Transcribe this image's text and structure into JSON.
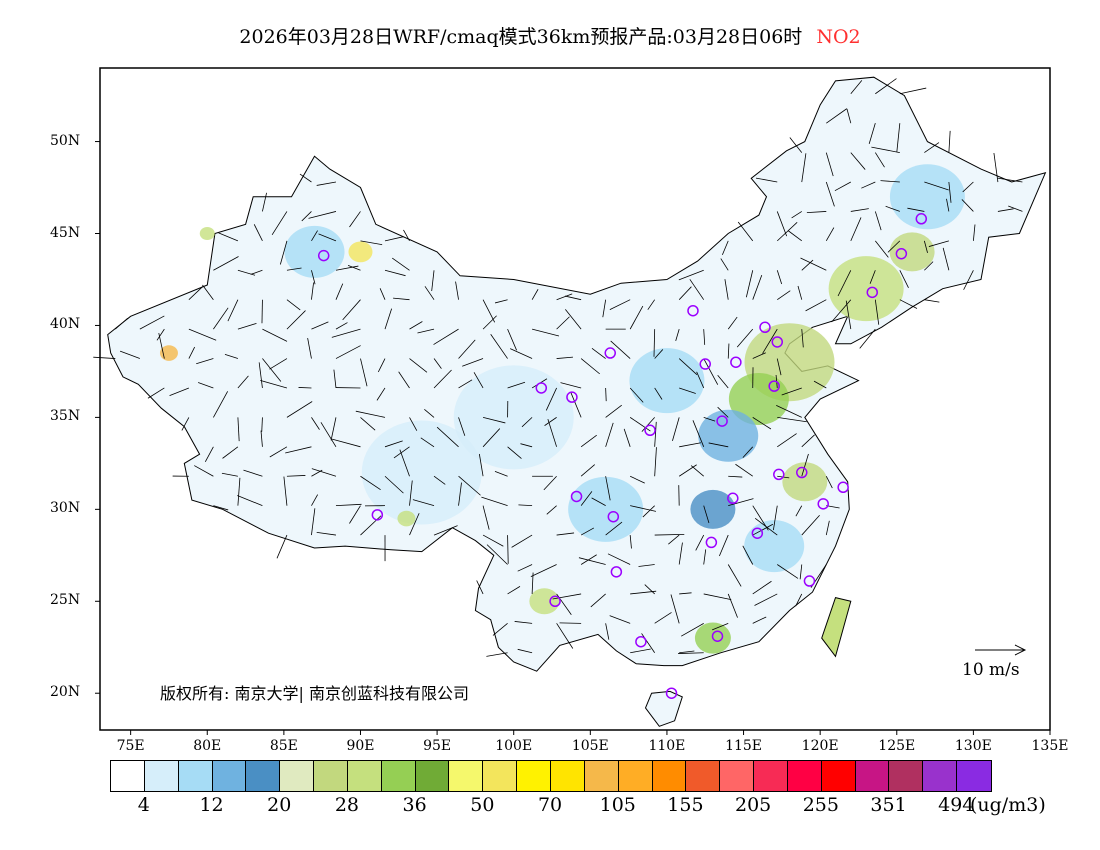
{
  "title": {
    "main": "2026年03月28日WRF/cmaq模式36km预报产品:03月28日06时",
    "species": "NO2"
  },
  "axes": {
    "lat_labels": [
      "50N",
      "45N",
      "40N",
      "35N",
      "30N",
      "25N",
      "20N"
    ],
    "lon_labels": [
      "75E",
      "80E",
      "85E",
      "90E",
      "95E",
      "100E",
      "105E",
      "110E",
      "115E",
      "120E",
      "125E",
      "130E",
      "135E"
    ]
  },
  "map": {
    "lon_range": [
      73,
      135
    ],
    "lat_range": [
      18,
      54
    ]
  },
  "copyright": "版权所有: 南京大学| 南京创蓝科技有限公司",
  "wind_scale": "10 m/s",
  "colorbar": {
    "colors": [
      "#ffffff",
      "#d6eefa",
      "#a6dcf5",
      "#6fb2e0",
      "#4a8fc4",
      "#e0eac0",
      "#c2d87e",
      "#c5e07e",
      "#95cf54",
      "#70ab36",
      "#f5f86c",
      "#f3e55c",
      "#fff200",
      "#ffe400",
      "#f5b84a",
      "#ffad25",
      "#ff8c00",
      "#f05a2a",
      "#ff6666",
      "#f72b55",
      "#ff0044",
      "#ff0000",
      "#c71585",
      "#b03060",
      "#9932cc",
      "#8a2be2"
    ],
    "labels": [
      "4",
      "12",
      "20",
      "28",
      "36",
      "50",
      "70",
      "105",
      "155",
      "205",
      "255",
      "351",
      "494"
    ],
    "unit": "(ug/m3)"
  }
}
